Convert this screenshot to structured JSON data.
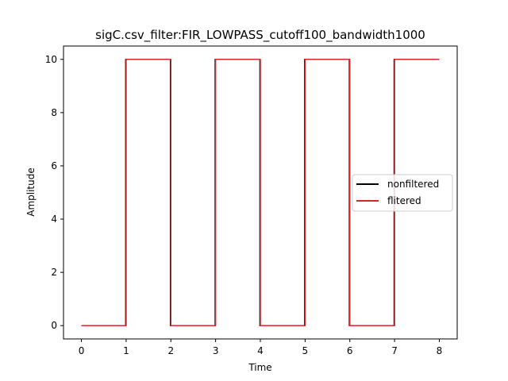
{
  "chart_data": {
    "type": "line",
    "title": "sigC.csv_filter:FIR_LOWPASS_cutoff100_bandwidth1000",
    "xlabel": "Time",
    "ylabel": "Amplitude",
    "xlim": [
      -0.4,
      8.4
    ],
    "ylim": [
      -0.5,
      10.5
    ],
    "xticks": [
      0,
      1,
      2,
      3,
      4,
      5,
      6,
      7,
      8
    ],
    "yticks": [
      0,
      2,
      4,
      6,
      8,
      10
    ],
    "grid": false,
    "legend_position": "center-right",
    "series": [
      {
        "name": "nonfiltered",
        "color": "#000000",
        "x": [
          0,
          0.99,
          0.99,
          1.99,
          1.99,
          2.99,
          2.99,
          3.99,
          3.99,
          4.99,
          4.99,
          5.99,
          5.99,
          6.99,
          6.99,
          8
        ],
        "y": [
          0,
          0,
          10,
          10,
          0,
          0,
          10,
          10,
          0,
          0,
          10,
          10,
          0,
          0,
          10,
          10
        ]
      },
      {
        "name": "flitered",
        "color": "#d62728",
        "x": [
          0,
          1,
          1,
          2,
          2,
          3,
          3,
          4,
          4,
          5,
          5,
          6,
          6,
          7,
          7,
          8
        ],
        "y": [
          0,
          0,
          10,
          10,
          0,
          0,
          10,
          10,
          0,
          0,
          10,
          10,
          0,
          0,
          10,
          10
        ]
      }
    ]
  }
}
